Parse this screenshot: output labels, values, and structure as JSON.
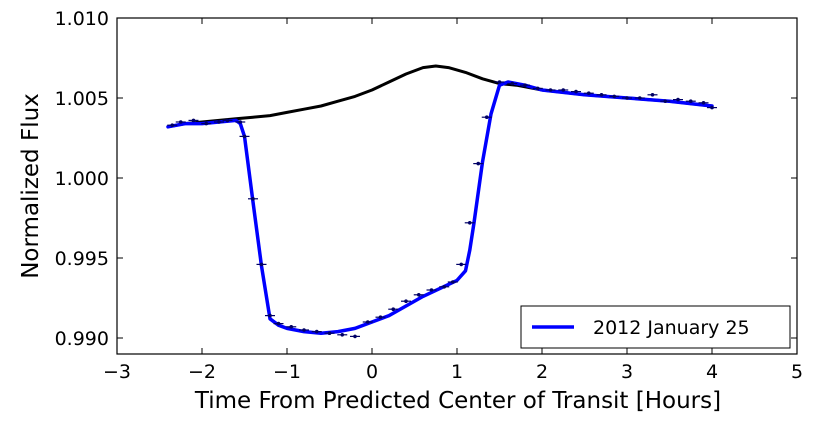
{
  "chart_data": {
    "type": "line",
    "title": "",
    "xlabel": "Time From Predicted Center of Transit [Hours]",
    "ylabel": "Normalized Flux",
    "xlim": [
      -3,
      5
    ],
    "ylim": [
      0.989,
      1.01
    ],
    "x_ticks": [
      -3,
      -2,
      -1,
      0,
      1,
      2,
      3,
      4,
      5
    ],
    "x_tick_labels": [
      "−3",
      "−2",
      "−1",
      "0",
      "1",
      "2",
      "3",
      "4",
      "5"
    ],
    "y_ticks": [
      0.99,
      0.995,
      1.0,
      1.005,
      1.01
    ],
    "y_tick_labels": [
      "0.990",
      "0.995",
      "1.000",
      "1.005",
      "1.010"
    ],
    "grid": false,
    "legend": {
      "placement": "bottom-right",
      "entries": [
        "2012 January 25"
      ]
    },
    "series": [
      {
        "name": "",
        "color": "#000000",
        "x": [
          -2.4,
          -2.2,
          -2.0,
          -1.8,
          -1.6,
          -1.4,
          -1.2,
          -1.0,
          -0.8,
          -0.6,
          -0.4,
          -0.2,
          0.0,
          0.2,
          0.4,
          0.6,
          0.75,
          0.9,
          1.1,
          1.3,
          1.5,
          1.7,
          2.0,
          2.5,
          3.0,
          3.5,
          4.0
        ],
        "y": [
          1.0032,
          1.0034,
          1.0035,
          1.0036,
          1.0037,
          1.0038,
          1.0039,
          1.0041,
          1.0043,
          1.0045,
          1.0048,
          1.0051,
          1.0055,
          1.006,
          1.0065,
          1.0069,
          1.007,
          1.0069,
          1.0066,
          1.0062,
          1.0059,
          1.0058,
          1.0055,
          1.0052,
          1.005,
          1.0048,
          1.0045
        ]
      },
      {
        "name": "2012 January 25",
        "color": "#0000ff",
        "x": [
          -2.4,
          -2.2,
          -2.0,
          -1.8,
          -1.6,
          -1.55,
          -1.5,
          -1.4,
          -1.3,
          -1.2,
          -1.1,
          -1.0,
          -0.8,
          -0.6,
          -0.4,
          -0.2,
          0.0,
          0.2,
          0.4,
          0.6,
          0.8,
          1.0,
          1.1,
          1.15,
          1.2,
          1.3,
          1.4,
          1.5,
          1.6,
          1.8,
          2.0,
          2.5,
          3.0,
          3.5,
          4.0
        ],
        "y": [
          1.0032,
          1.0034,
          1.0034,
          1.0035,
          1.0036,
          1.0034,
          1.0026,
          0.9985,
          0.9945,
          0.9912,
          0.9908,
          0.9906,
          0.9904,
          0.9903,
          0.9904,
          0.9906,
          0.991,
          0.9914,
          0.992,
          0.9926,
          0.9931,
          0.9936,
          0.9942,
          0.9955,
          0.9972,
          1.001,
          1.004,
          1.0058,
          1.006,
          1.0058,
          1.0055,
          1.0052,
          1.005,
          1.0048,
          1.0045
        ]
      }
    ],
    "error_points": {
      "color": "#000066",
      "x": [
        -2.35,
        -2.25,
        -2.1,
        -1.95,
        -1.8,
        -1.7,
        -1.55,
        -1.5,
        -1.4,
        -1.3,
        -1.2,
        -1.1,
        -0.95,
        -0.8,
        -0.65,
        -0.5,
        -0.35,
        -0.2,
        -0.05,
        0.1,
        0.25,
        0.4,
        0.55,
        0.7,
        0.85,
        0.95,
        1.05,
        1.15,
        1.25,
        1.35,
        1.5,
        1.65,
        1.8,
        1.95,
        2.1,
        2.25,
        2.4,
        2.55,
        2.7,
        2.85,
        3.0,
        3.15,
        3.3,
        3.45,
        3.6,
        3.75,
        3.9,
        4.0
      ],
      "y": [
        1.0033,
        1.0035,
        1.0036,
        1.0034,
        1.0035,
        1.0036,
        1.0035,
        1.0026,
        0.9987,
        0.9946,
        0.9914,
        0.9909,
        0.9907,
        0.9905,
        0.9904,
        0.9903,
        0.9902,
        0.9901,
        0.991,
        0.9913,
        0.9918,
        0.9923,
        0.9927,
        0.993,
        0.9932,
        0.9935,
        0.9946,
        0.9972,
        1.0009,
        1.0038,
        1.006,
        1.0059,
        1.0058,
        1.0056,
        1.0055,
        1.0055,
        1.0054,
        1.0053,
        1.0052,
        1.0051,
        1.005,
        1.005,
        1.0052,
        1.0048,
        1.0049,
        1.0048,
        1.0047,
        1.0044
      ]
    }
  }
}
